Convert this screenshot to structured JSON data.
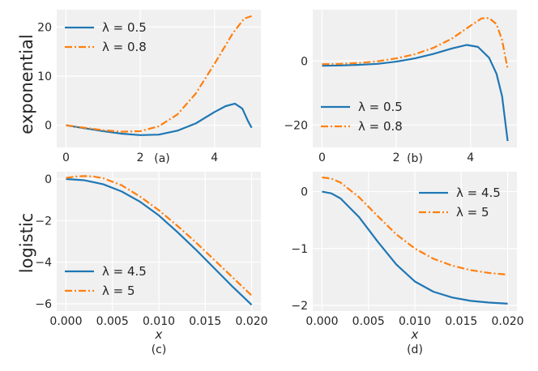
{
  "figure": {
    "row_labels": [
      "exponential",
      "logistic"
    ],
    "colors": {
      "series1": "#1f77b4",
      "series2": "#ff7f0e",
      "panel_bg": "#f0f0f0",
      "grid": "#ffffff"
    }
  },
  "chart_data": [
    {
      "panel": "(a)",
      "type": "line",
      "xlim": [
        -0.25,
        5.25
      ],
      "ylim": [
        -4.5,
        23.5
      ],
      "xticks": [
        0,
        2,
        4
      ],
      "yticks": [
        0,
        10,
        20
      ],
      "xlabel": "",
      "legend": "top-left",
      "grid": true,
      "series": [
        {
          "name": "λ = 0.5",
          "style": "solid",
          "x": [
            0,
            0.5,
            1,
            1.5,
            2,
            2.5,
            3,
            3.5,
            4,
            4.3,
            4.55,
            4.75,
            4.9,
            5.0
          ],
          "y": [
            0,
            -0.6,
            -1.2,
            -1.7,
            -2.0,
            -1.9,
            -1.1,
            0.4,
            2.7,
            3.9,
            4.4,
            3.4,
            0.9,
            -0.5
          ]
        },
        {
          "name": "λ = 0.8",
          "style": "dashdot",
          "x": [
            0,
            0.5,
            1,
            1.5,
            2,
            2.5,
            3,
            3.5,
            4,
            4.5,
            4.8,
            5.0
          ],
          "y": [
            0,
            -0.5,
            -1.0,
            -1.3,
            -1.2,
            -0.2,
            2.2,
            6.5,
            12.5,
            18.8,
            21.7,
            22.2
          ]
        }
      ]
    },
    {
      "panel": "(b)",
      "type": "line",
      "xlim": [
        -0.25,
        5.25
      ],
      "ylim": [
        -27,
        16
      ],
      "xticks": [
        0,
        2,
        4
      ],
      "yticks": [
        -20,
        0
      ],
      "xlabel": "",
      "legend": "lower-left",
      "grid": true,
      "series": [
        {
          "name": "λ = 0.5",
          "style": "solid",
          "x": [
            0,
            0.5,
            1,
            1.5,
            2,
            2.5,
            3,
            3.5,
            3.9,
            4.2,
            4.5,
            4.7,
            4.85,
            5.0
          ],
          "y": [
            -1.5,
            -1.4,
            -1.2,
            -0.9,
            -0.2,
            0.8,
            2.2,
            3.9,
            5.0,
            4.4,
            1.0,
            -4.0,
            -11.0,
            -25.0
          ]
        },
        {
          "name": "λ = 0.8",
          "style": "dashdot",
          "x": [
            0,
            0.5,
            1,
            1.5,
            2,
            2.5,
            3,
            3.5,
            4,
            4.3,
            4.5,
            4.7,
            4.85,
            5.0
          ],
          "y": [
            -1.0,
            -0.9,
            -0.6,
            -0.1,
            0.8,
            2.1,
            4.1,
            7.0,
            11.0,
            13.3,
            13.4,
            11.5,
            6.5,
            -2.5
          ]
        }
      ]
    },
    {
      "panel": "(c)",
      "type": "line",
      "xlim": [
        -0.001,
        0.021
      ],
      "ylim": [
        -6.35,
        0.35
      ],
      "xticks": [
        0.0,
        0.005,
        0.01,
        0.015,
        0.02
      ],
      "xtick_labels": [
        "0.000",
        "0.005",
        "0.010",
        "0.015",
        "0.020"
      ],
      "yticks": [
        -6,
        -4,
        -2,
        0
      ],
      "xlabel": "x",
      "legend": "lower-left",
      "grid": true,
      "series": [
        {
          "name": "λ = 4.5",
          "style": "solid",
          "x": [
            0,
            0.002,
            0.004,
            0.006,
            0.008,
            0.01,
            0.012,
            0.014,
            0.016,
            0.018,
            0.02
          ],
          "y": [
            0,
            -0.06,
            -0.25,
            -0.6,
            -1.1,
            -1.75,
            -2.55,
            -3.4,
            -4.3,
            -5.2,
            -6.05
          ]
        },
        {
          "name": "λ = 5",
          "style": "dashdot",
          "x": [
            0,
            0.001,
            0.002,
            0.003,
            0.004,
            0.006,
            0.008,
            0.01,
            0.012,
            0.014,
            0.016,
            0.018,
            0.02
          ],
          "y": [
            0.05,
            0.12,
            0.14,
            0.12,
            0.04,
            -0.3,
            -0.85,
            -1.5,
            -2.25,
            -3.05,
            -3.9,
            -4.75,
            -5.6
          ]
        }
      ]
    },
    {
      "panel": "(d)",
      "type": "line",
      "xlim": [
        -0.001,
        0.021
      ],
      "ylim": [
        -2.1,
        0.35
      ],
      "xticks": [
        0.0,
        0.005,
        0.01,
        0.015,
        0.02
      ],
      "xtick_labels": [
        "0.000",
        "0.005",
        "0.010",
        "0.015",
        "0.020"
      ],
      "yticks": [
        -2,
        -1,
        0
      ],
      "xlabel": "x",
      "legend": "top-right",
      "grid": true,
      "series": [
        {
          "name": "λ = 4.5",
          "style": "solid",
          "x": [
            0,
            0.001,
            0.002,
            0.004,
            0.006,
            0.008,
            0.01,
            0.012,
            0.014,
            0.016,
            0.018,
            0.02
          ],
          "y": [
            0,
            -0.03,
            -0.12,
            -0.45,
            -0.88,
            -1.28,
            -1.58,
            -1.76,
            -1.86,
            -1.92,
            -1.95,
            -1.97
          ]
        },
        {
          "name": "λ = 5",
          "style": "dashdot",
          "x": [
            0,
            0.001,
            0.002,
            0.004,
            0.006,
            0.008,
            0.01,
            0.012,
            0.014,
            0.016,
            0.018,
            0.02
          ],
          "y": [
            0.25,
            0.23,
            0.16,
            -0.1,
            -0.43,
            -0.75,
            -1.0,
            -1.18,
            -1.3,
            -1.38,
            -1.43,
            -1.46
          ]
        }
      ]
    }
  ]
}
